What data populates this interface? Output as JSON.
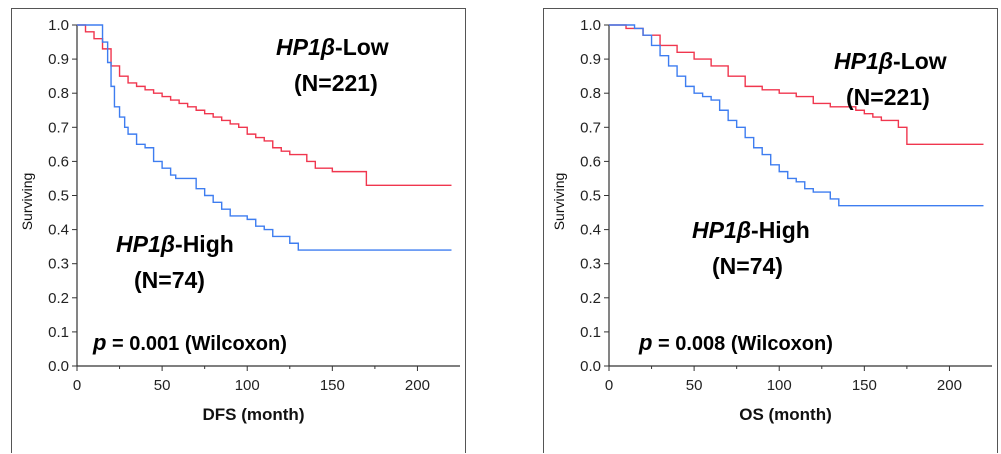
{
  "chart_data": [
    {
      "type": "line",
      "step": true,
      "xlabel": "DFS (month)",
      "ylabel": "Surviving",
      "xlim": [
        0,
        225
      ],
      "ylim": [
        0,
        1.0
      ],
      "xticks": [
        "0",
        "50",
        "100",
        "150",
        "200"
      ],
      "yticks": [
        "0.0",
        "0.1",
        "0.2",
        "0.3",
        "0.4",
        "0.5",
        "0.6",
        "0.7",
        "0.8",
        "0.9",
        "1.0"
      ],
      "grid": false,
      "series": [
        {
          "name": "HP1β-Low",
          "gene": "HP1β",
          "suffix": "-Low",
          "n_label": "(N=221)",
          "color": "#f0364e",
          "x": [
            0,
            5,
            10,
            15,
            20,
            25,
            30,
            35,
            40,
            45,
            50,
            55,
            60,
            65,
            70,
            75,
            80,
            85,
            90,
            95,
            100,
            105,
            110,
            115,
            120,
            125,
            130,
            135,
            140,
            150,
            160,
            170,
            220
          ],
          "y": [
            1.0,
            0.98,
            0.96,
            0.93,
            0.88,
            0.85,
            0.83,
            0.82,
            0.81,
            0.8,
            0.79,
            0.78,
            0.77,
            0.76,
            0.75,
            0.74,
            0.73,
            0.72,
            0.71,
            0.7,
            0.68,
            0.67,
            0.66,
            0.64,
            0.63,
            0.62,
            0.62,
            0.6,
            0.58,
            0.57,
            0.57,
            0.53,
            0.53
          ]
        },
        {
          "name": "HP1β-High",
          "gene": "HP1β",
          "suffix": "-High",
          "n_label": "(N=74)",
          "color": "#3e7df0",
          "x": [
            0,
            12,
            15,
            18,
            20,
            22,
            25,
            28,
            30,
            35,
            40,
            45,
            50,
            55,
            58,
            70,
            75,
            80,
            85,
            90,
            95,
            100,
            105,
            110,
            115,
            125,
            130,
            220
          ],
          "y": [
            1.0,
            1.0,
            0.95,
            0.89,
            0.82,
            0.76,
            0.73,
            0.7,
            0.68,
            0.65,
            0.64,
            0.6,
            0.58,
            0.56,
            0.55,
            0.52,
            0.5,
            0.48,
            0.46,
            0.44,
            0.44,
            0.43,
            0.41,
            0.4,
            0.38,
            0.36,
            0.34,
            0.34
          ]
        }
      ],
      "annotation": {
        "prefix": "p",
        "text": "= 0.001 (Wilcoxon)"
      }
    },
    {
      "type": "line",
      "step": true,
      "xlabel": "OS (month)",
      "ylabel": "Surviving",
      "xlim": [
        0,
        225
      ],
      "ylim": [
        0,
        1.0
      ],
      "xticks": [
        "0",
        "50",
        "100",
        "150",
        "200"
      ],
      "yticks": [
        "0.0",
        "0.1",
        "0.2",
        "0.3",
        "0.4",
        "0.5",
        "0.6",
        "0.7",
        "0.8",
        "0.9",
        "1.0"
      ],
      "grid": false,
      "series": [
        {
          "name": "HP1β-Low",
          "gene": "HP1β",
          "suffix": "-Low",
          "n_label": "(N=221)",
          "color": "#f0364e",
          "x": [
            0,
            10,
            20,
            30,
            40,
            50,
            60,
            70,
            80,
            90,
            100,
            110,
            120,
            130,
            140,
            145,
            150,
            155,
            160,
            170,
            175,
            220
          ],
          "y": [
            1.0,
            0.99,
            0.97,
            0.94,
            0.92,
            0.9,
            0.88,
            0.85,
            0.82,
            0.81,
            0.8,
            0.79,
            0.77,
            0.76,
            0.76,
            0.75,
            0.74,
            0.73,
            0.72,
            0.7,
            0.65,
            0.65
          ]
        },
        {
          "name": "HP1β-High",
          "gene": "HP1β",
          "suffix": "-High",
          "n_label": "(N=74)",
          "color": "#3e7df0",
          "x": [
            0,
            15,
            20,
            25,
            30,
            35,
            40,
            45,
            50,
            55,
            60,
            65,
            70,
            75,
            80,
            85,
            90,
            95,
            100,
            105,
            110,
            115,
            120,
            130,
            135,
            220
          ],
          "y": [
            1.0,
            0.99,
            0.97,
            0.94,
            0.91,
            0.88,
            0.85,
            0.82,
            0.8,
            0.79,
            0.78,
            0.75,
            0.72,
            0.7,
            0.67,
            0.64,
            0.62,
            0.59,
            0.57,
            0.55,
            0.54,
            0.52,
            0.51,
            0.49,
            0.47,
            0.47
          ]
        }
      ],
      "annotation": {
        "prefix": "p",
        "text": "= 0.008 (Wilcoxon)"
      }
    }
  ]
}
